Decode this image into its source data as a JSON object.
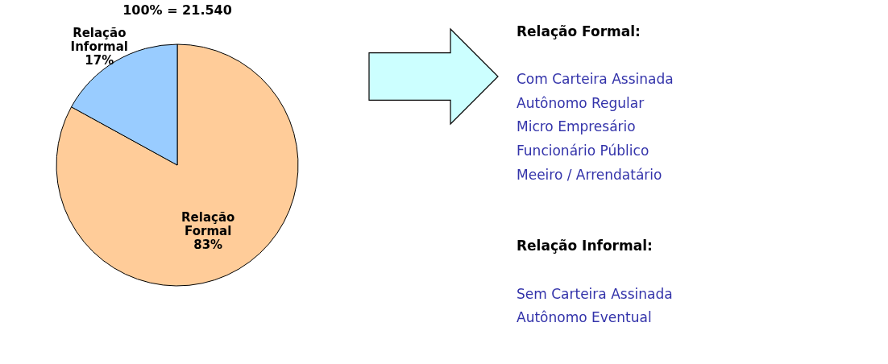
{
  "chart_data": {
    "type": "pie",
    "title": "100% = 21.540",
    "categories": [
      "Relação Formal",
      "Relação Informal"
    ],
    "values": [
      83,
      17
    ],
    "colors": [
      "#ffcc99",
      "#99ccff"
    ],
    "value_labels": [
      "83%",
      "17%"
    ],
    "legend": false,
    "annotations": [
      "Relação Formal:",
      "Com Carteira Assinada",
      "Autônomo Regular",
      "Micro Empresário",
      "Funcionário Público",
      "Meeiro / Arrendatário",
      "Relação Informal:",
      "Sem Carteira Assinada",
      "Autônomo Eventual"
    ]
  }
}
